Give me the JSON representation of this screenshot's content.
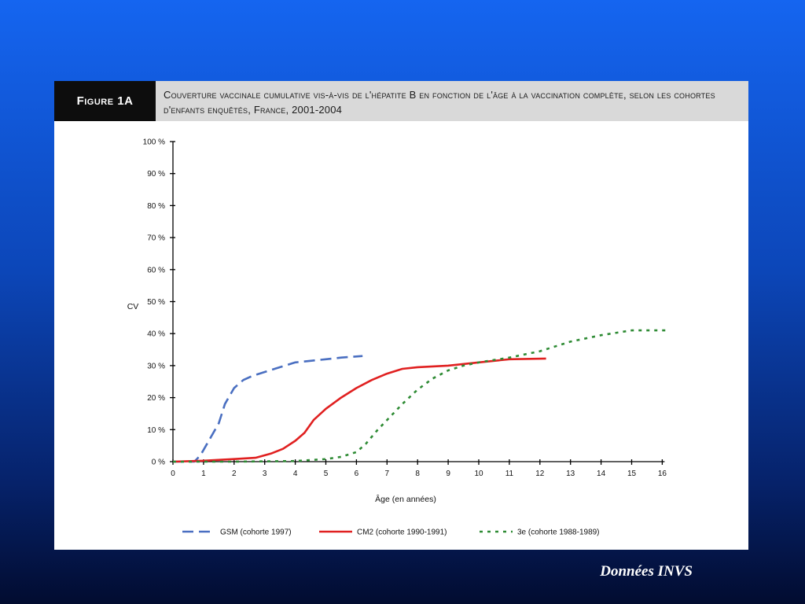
{
  "figure": {
    "label": "Figure 1A",
    "title": "Couverture vaccinale cumulative vis-à-vis de l'hépatite B en fonction de l'âge à la vaccination complète, selon les cohortes d'enfants enquêtés, France, 2001-2004"
  },
  "credit": "Données INVS",
  "chart_data": {
    "type": "line",
    "ylabel": "CV",
    "xlabel": "Âge (en années)",
    "xlim": [
      0,
      16
    ],
    "ylim": [
      0,
      100
    ],
    "x_ticks": [
      0,
      1,
      2,
      3,
      4,
      5,
      6,
      7,
      8,
      9,
      10,
      11,
      12,
      13,
      14,
      15,
      16
    ],
    "y_ticks": [
      0,
      10,
      20,
      30,
      40,
      50,
      60,
      70,
      80,
      90,
      100
    ],
    "y_tick_labels": [
      "0 %",
      "10 %",
      "20 %",
      "30 %",
      "40 %",
      "50 %",
      "60 %",
      "70 %",
      "80 %",
      "90 %",
      "100 %"
    ],
    "grid": false,
    "legend_position": "bottom",
    "series": [
      {
        "name": "GSM (cohorte 1997)",
        "color": "#4a6fc1",
        "dash": "dashed",
        "points": [
          [
            0,
            0
          ],
          [
            0.7,
            0
          ],
          [
            0.9,
            2
          ],
          [
            1.2,
            7
          ],
          [
            1.5,
            12
          ],
          [
            1.7,
            18
          ],
          [
            2,
            23
          ],
          [
            2.3,
            25.5
          ],
          [
            2.6,
            26.8
          ],
          [
            3,
            28
          ],
          [
            3.5,
            29.5
          ],
          [
            4,
            31
          ],
          [
            4.5,
            31.5
          ],
          [
            5,
            32
          ],
          [
            5.5,
            32.5
          ],
          [
            6.2,
            33
          ]
        ]
      },
      {
        "name": "CM2 (cohorte 1990-1991)",
        "color": "#e02020",
        "dash": "solid",
        "points": [
          [
            0,
            0
          ],
          [
            1,
            0.3
          ],
          [
            2,
            0.8
          ],
          [
            2.7,
            1.2
          ],
          [
            3.2,
            2.5
          ],
          [
            3.6,
            4
          ],
          [
            4,
            6.5
          ],
          [
            4.3,
            9
          ],
          [
            4.6,
            13
          ],
          [
            5,
            16.5
          ],
          [
            5.5,
            20
          ],
          [
            6,
            23
          ],
          [
            6.5,
            25.5
          ],
          [
            7,
            27.5
          ],
          [
            7.5,
            29
          ],
          [
            8,
            29.5
          ],
          [
            9,
            30
          ],
          [
            10,
            31
          ],
          [
            11,
            32
          ],
          [
            12.2,
            32.2
          ]
        ]
      },
      {
        "name": "3e (cohorte 1988-1989)",
        "color": "#2e8b34",
        "dash": "dotted",
        "points": [
          [
            0,
            0
          ],
          [
            2,
            0
          ],
          [
            4,
            0.2
          ],
          [
            5,
            0.8
          ],
          [
            5.5,
            1.5
          ],
          [
            6,
            3
          ],
          [
            6.3,
            5.5
          ],
          [
            6.7,
            10
          ],
          [
            7,
            13
          ],
          [
            7.5,
            18
          ],
          [
            8,
            22.5
          ],
          [
            8.5,
            26
          ],
          [
            9,
            28.5
          ],
          [
            9.5,
            30
          ],
          [
            10,
            31
          ],
          [
            11,
            32.5
          ],
          [
            12,
            34.5
          ],
          [
            13,
            37.5
          ],
          [
            14,
            39.5
          ],
          [
            15,
            41
          ],
          [
            16.2,
            41
          ]
        ]
      }
    ]
  }
}
